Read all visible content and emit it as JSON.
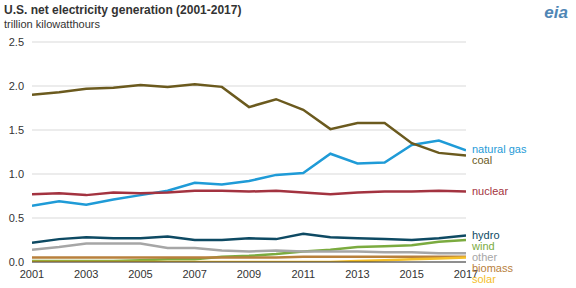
{
  "chart_data": {
    "type": "line",
    "title": "U.S. net electricity generation (2001-2017)",
    "subtitle": "trillion kilowatthours",
    "annotations": [
      "eia"
    ],
    "x": [
      2001,
      2002,
      2003,
      2004,
      2005,
      2006,
      2007,
      2008,
      2009,
      2010,
      2011,
      2012,
      2013,
      2014,
      2015,
      2016,
      2017
    ],
    "series": [
      {
        "name": "natural gas",
        "color": "#1f9bd7",
        "values": [
          0.64,
          0.69,
          0.65,
          0.71,
          0.76,
          0.81,
          0.9,
          0.88,
          0.92,
          0.99,
          1.01,
          1.23,
          1.12,
          1.13,
          1.33,
          1.38,
          1.27
        ]
      },
      {
        "name": "coal",
        "color": "#6b5a1e",
        "values": [
          1.9,
          1.93,
          1.97,
          1.98,
          2.01,
          1.99,
          2.02,
          1.99,
          1.76,
          1.85,
          1.73,
          1.51,
          1.58,
          1.58,
          1.35,
          1.24,
          1.21
        ]
      },
      {
        "name": "nuclear",
        "color": "#a33340",
        "values": [
          0.77,
          0.78,
          0.76,
          0.79,
          0.78,
          0.79,
          0.81,
          0.81,
          0.8,
          0.81,
          0.79,
          0.77,
          0.79,
          0.8,
          0.8,
          0.81,
          0.8
        ]
      },
      {
        "name": "hydro",
        "color": "#0e4a63",
        "values": [
          0.22,
          0.26,
          0.28,
          0.27,
          0.27,
          0.29,
          0.25,
          0.25,
          0.27,
          0.26,
          0.32,
          0.28,
          0.27,
          0.26,
          0.25,
          0.27,
          0.3
        ]
      },
      {
        "name": "wind",
        "color": "#7bab3f",
        "values": [
          0.01,
          0.01,
          0.01,
          0.01,
          0.02,
          0.03,
          0.03,
          0.06,
          0.07,
          0.09,
          0.12,
          0.14,
          0.17,
          0.18,
          0.19,
          0.23,
          0.25
        ]
      },
      {
        "name": "other",
        "color": "#a6a6a6",
        "values": [
          0.14,
          0.17,
          0.21,
          0.21,
          0.21,
          0.16,
          0.16,
          0.13,
          0.12,
          0.13,
          0.12,
          0.12,
          0.12,
          0.11,
          0.11,
          0.1,
          0.1
        ]
      },
      {
        "name": "biomass",
        "color": "#b8803c",
        "values": [
          0.05,
          0.05,
          0.05,
          0.05,
          0.05,
          0.05,
          0.05,
          0.05,
          0.05,
          0.05,
          0.06,
          0.06,
          0.06,
          0.06,
          0.06,
          0.06,
          0.06
        ]
      },
      {
        "name": "solar",
        "color": "#f4c02a",
        "values": [
          0.0,
          0.0,
          0.0,
          0.0,
          0.0,
          0.0,
          0.0,
          0.0,
          0.0,
          0.0,
          0.0,
          0.0,
          0.01,
          0.02,
          0.03,
          0.04,
          0.05
        ]
      }
    ],
    "xlim": [
      2001,
      2017
    ],
    "xticks": [
      2001,
      2003,
      2005,
      2007,
      2009,
      2011,
      2013,
      2015,
      2017
    ],
    "ylim": [
      0,
      2.5
    ],
    "yticks": [
      {
        "value": 0,
        "label": "0.0"
      },
      0.5,
      {
        "value": 1,
        "label": "1.0"
      },
      1.5,
      {
        "value": 2,
        "label": "2.0"
      },
      2.5
    ],
    "grid": true
  }
}
